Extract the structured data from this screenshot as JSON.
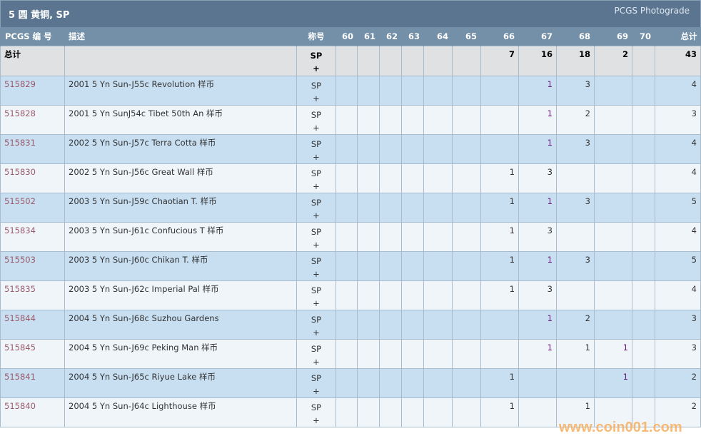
{
  "header": {
    "title": "5 圆 黄铜, SP",
    "photograde_link": "PCGS Photograde"
  },
  "columns": [
    "PCGS 编 号",
    "描述",
    "称号",
    "60",
    "61",
    "62",
    "63",
    "64",
    "65",
    "66",
    "67",
    "68",
    "69",
    "70",
    "总计"
  ],
  "total_row": {
    "label": "总计",
    "designation": "SP",
    "plus": "+",
    "counts": [
      "",
      "",
      "",
      "",
      "",
      "",
      "7",
      "16",
      "18",
      "2",
      ""
    ],
    "total": "43"
  },
  "rows": [
    {
      "id": "515829",
      "desc": "2001 5 Yn Sun-J55c Revolution 样币",
      "des": "SP",
      "plus": "+",
      "counts": [
        "",
        "",
        "",
        "",
        "",
        "",
        "",
        "1",
        "3",
        "",
        ""
      ],
      "total": "4"
    },
    {
      "id": "515828",
      "desc": "2001 5 Yn SunJ54c Tibet 50th An 样币",
      "des": "SP",
      "plus": "+",
      "counts": [
        "",
        "",
        "",
        "",
        "",
        "",
        "",
        "1",
        "2",
        "",
        ""
      ],
      "total": "3"
    },
    {
      "id": "515831",
      "desc": "2002 5 Yn Sun-J57c Terra Cotta 样币",
      "des": "SP",
      "plus": "+",
      "counts": [
        "",
        "",
        "",
        "",
        "",
        "",
        "",
        "1",
        "3",
        "",
        ""
      ],
      "total": "4"
    },
    {
      "id": "515830",
      "desc": "2002 5 Yn Sun-J56c Great Wall 样币",
      "des": "SP",
      "plus": "+",
      "counts": [
        "",
        "",
        "",
        "",
        "",
        "",
        "1",
        "3",
        "",
        "",
        ""
      ],
      "total": "4"
    },
    {
      "id": "515502",
      "desc": "2003 5 Yn Sun-J59c Chaotian T. 样币",
      "des": "SP",
      "plus": "+",
      "counts": [
        "",
        "",
        "",
        "",
        "",
        "",
        "1",
        "1",
        "3",
        "",
        ""
      ],
      "total": "5"
    },
    {
      "id": "515834",
      "desc": "2003 5 Yn Sun-J61c Confucious T 样币",
      "des": "SP",
      "plus": "+",
      "counts": [
        "",
        "",
        "",
        "",
        "",
        "",
        "1",
        "3",
        "",
        "",
        ""
      ],
      "total": "4"
    },
    {
      "id": "515503",
      "desc": "2003 5 Yn Sun-J60c Chikan T. 样币",
      "des": "SP",
      "plus": "+",
      "counts": [
        "",
        "",
        "",
        "",
        "",
        "",
        "1",
        "1",
        "3",
        "",
        ""
      ],
      "total": "5"
    },
    {
      "id": "515835",
      "desc": "2003 5 Yn Sun-J62c Imperial Pal 样币",
      "des": "SP",
      "plus": "+",
      "counts": [
        "",
        "",
        "",
        "",
        "",
        "",
        "1",
        "3",
        "",
        "",
        ""
      ],
      "total": "4"
    },
    {
      "id": "515844",
      "desc": "2004 5 Yn Sun-J68c Suzhou Gardens",
      "des": "SP",
      "plus": "+",
      "counts": [
        "",
        "",
        "",
        "",
        "",
        "",
        "",
        "1",
        "2",
        "",
        ""
      ],
      "total": "3"
    },
    {
      "id": "515845",
      "desc": "2004 5 Yn Sun-J69c Peking Man 样币",
      "des": "SP",
      "plus": "+",
      "counts": [
        "",
        "",
        "",
        "",
        "",
        "",
        "",
        "1",
        "1",
        "1",
        ""
      ],
      "total": "3"
    },
    {
      "id": "515841",
      "desc": "2004 5 Yn Sun-J65c Riyue Lake 样币",
      "des": "SP",
      "plus": "+",
      "counts": [
        "",
        "",
        "",
        "",
        "",
        "",
        "1",
        "",
        "",
        "1",
        ""
      ],
      "total": "2"
    },
    {
      "id": "515840",
      "desc": "2004 5 Yn Sun-J64c Lighthouse 样币",
      "des": "SP",
      "plus": "+",
      "counts": [
        "",
        "",
        "",
        "",
        "",
        "",
        "1",
        "",
        "1",
        "",
        ""
      ],
      "total": "2"
    }
  ],
  "watermark": "www.coin001.com",
  "colors": {
    "header": "#5b7590",
    "column_header": "#7390a8",
    "row_alt": "#c8dff2",
    "row": "#f0f5fa",
    "total_row": "#e0e1e2",
    "link": "#9a5a6a"
  }
}
